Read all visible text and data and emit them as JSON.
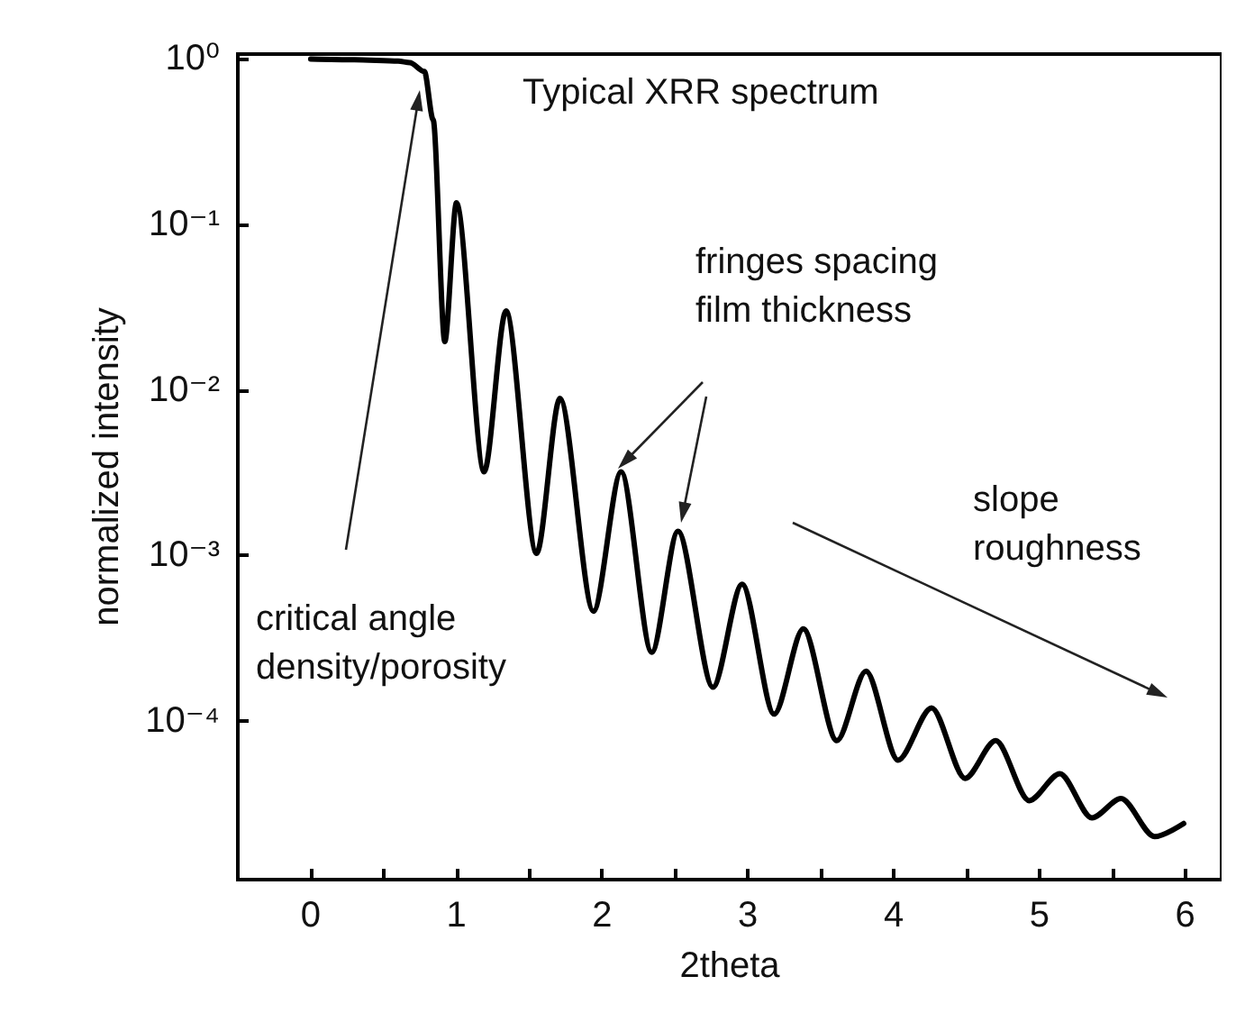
{
  "chart_data": {
    "type": "line",
    "xlabel": "2theta",
    "ylabel": "normalized intensity",
    "x": [
      0,
      0.3,
      0.6,
      0.68,
      0.78,
      0.84,
      0.92,
      1.0,
      1.19,
      1.34,
      1.55,
      1.71,
      1.94,
      2.13,
      2.34,
      2.52,
      2.76,
      2.96,
      3.18,
      3.38,
      3.61,
      3.81,
      4.03,
      4.26,
      4.49,
      4.7,
      4.93,
      5.14,
      5.36,
      5.56,
      5.79,
      5.99
    ],
    "series": [
      {
        "color": "#000000",
        "values": [
          1.0,
          0.99,
          0.97,
          0.95,
          0.84,
          0.43,
          0.0196,
          0.135,
          0.0032,
          0.03,
          0.00103,
          0.0089,
          0.00046,
          0.0032,
          0.00026,
          0.0014,
          0.00016,
          0.00067,
          0.00011,
          0.00036,
          7.6e-05,
          0.0002,
          5.8e-05,
          0.00012,
          4.5e-05,
          7.6e-05,
          3.3e-05,
          4.8e-05,
          2.6e-05,
          3.4e-05,
          2e-05,
          2.4e-05
        ]
      }
    ],
    "log": "y",
    "xlim": [
      -0.5,
      6.25
    ],
    "ylim": [
      1.1e-05,
      1.07
    ],
    "xticks": [
      {
        "value": -0.5,
        "label": null
      },
      0,
      {
        "value": 0.5,
        "label": null
      },
      1,
      {
        "value": 1.5,
        "label": null
      },
      2,
      {
        "value": 2.5,
        "label": null
      },
      3,
      {
        "value": 3.5,
        "label": null
      },
      4,
      {
        "value": 4.5,
        "label": null
      },
      5,
      {
        "value": 5.5,
        "label": null
      },
      6
    ],
    "yticks": [
      {
        "value": 1,
        "label": "10⁰"
      },
      {
        "value": 0.1,
        "label": "10⁻¹"
      },
      {
        "value": 0.01,
        "label": "10⁻²"
      },
      {
        "value": 0.001,
        "label": "10⁻³"
      },
      {
        "value": 0.0001,
        "label": "10⁻⁴"
      }
    ],
    "grid": false,
    "marker": "none",
    "line_style": "solid",
    "annotations": [
      "Typical XRR spectrum",
      "critical angle\ndensity/porosity",
      "fringes spacing\nfilm thickness",
      "slope\nroughness"
    ]
  }
}
